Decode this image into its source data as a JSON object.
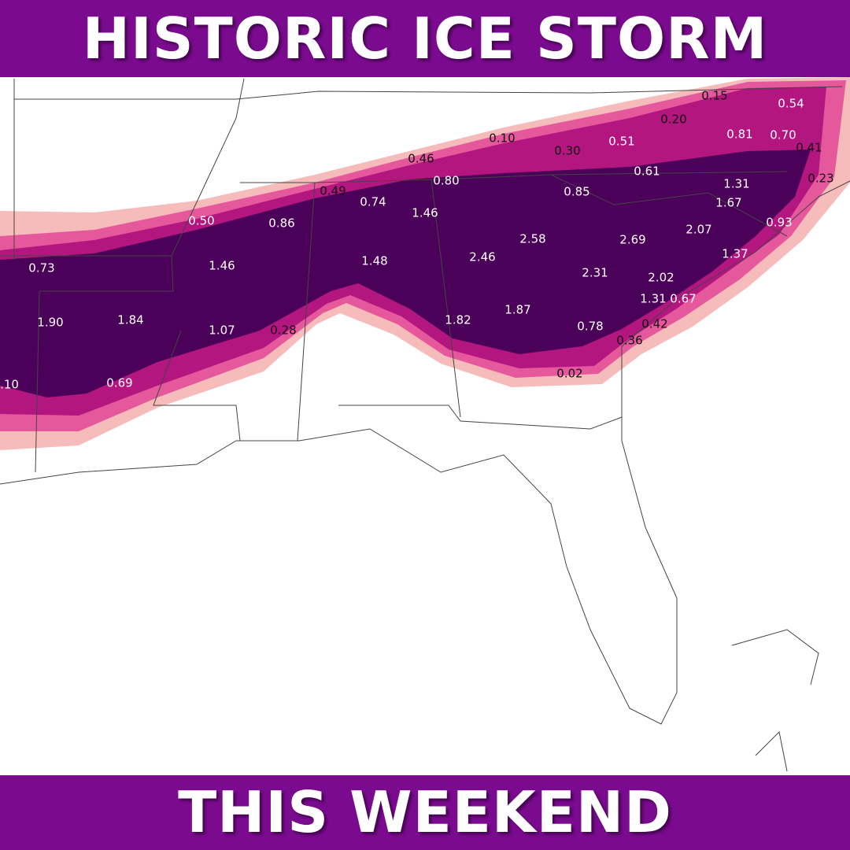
{
  "header": {
    "title": "HISTORIC ICE STORM"
  },
  "footer": {
    "title": "THIS WEEKEND"
  },
  "map": {
    "labels": [
      "0.15",
      "0.54",
      "0.20",
      "0.10",
      "0.81",
      "0.70",
      "0.41",
      "0.30",
      "0.51",
      "0.46",
      "0.61",
      "0.23",
      "0.80",
      "0.49",
      "0.74",
      "0.85",
      "1.31",
      "1.67",
      "0.50",
      "0.86",
      "1.46",
      "2.07",
      "0.93",
      "2.58",
      "2.69",
      "0.73",
      "1.46",
      "1.48",
      "2.46",
      "1.37",
      "2.31",
      "2.02",
      "1.31",
      "0.67",
      "1.90",
      "1.84",
      "1.82",
      "1.87",
      "1.07",
      "0.28",
      "0.78",
      "0.42",
      "0.36",
      "0.02",
      ".10",
      "0.69"
    ]
  }
}
